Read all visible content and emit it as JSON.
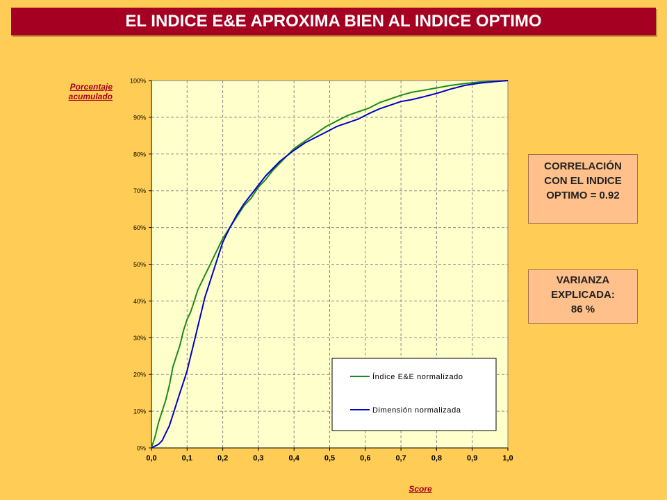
{
  "title": "EL INDICE E&E APROXIMA BIEN AL INDICE OPTIMO",
  "colors": {
    "background": "#FFCC55",
    "title_bar": "#A50021",
    "plot_area": "#FFFFCC",
    "series_green": "#1A8A1A",
    "series_blue": "#0000CC",
    "info_box": "#FFC08C"
  },
  "info_boxes": {
    "correlation": [
      "CORRELACIÓN",
      "CON EL INDICE",
      "OPTIMO = 0.92"
    ],
    "variance": [
      "VARIANZA",
      "EXPLICADA:",
      "86 %"
    ]
  },
  "chart_data": {
    "type": "line",
    "xlabel": "Score",
    "ylabel_lines": [
      "Porcentaje",
      "acumulado"
    ],
    "xlim": [
      0,
      1
    ],
    "ylim": [
      0,
      100
    ],
    "x_ticks": [
      "0,0",
      "0,1",
      "0,2",
      "0,3",
      "0,4",
      "0,5",
      "0,6",
      "0,7",
      "0,8",
      "0,9",
      "1,0"
    ],
    "y_ticks": [
      "0%",
      "10%",
      "20%",
      "30%",
      "40%",
      "50%",
      "60%",
      "70%",
      "80%",
      "90%",
      "100%"
    ],
    "grid": true,
    "legend_position": "bottom-right",
    "series": [
      {
        "name": "Índice E&E normalizado",
        "color": "#1A8A1A",
        "x": [
          0,
          0.01,
          0.02,
          0.03,
          0.04,
          0.05,
          0.06,
          0.07,
          0.08,
          0.09,
          0.1,
          0.11,
          0.12,
          0.13,
          0.14,
          0.15,
          0.16,
          0.17,
          0.18,
          0.19,
          0.2,
          0.22,
          0.24,
          0.26,
          0.28,
          0.3,
          0.32,
          0.34,
          0.36,
          0.38,
          0.4,
          0.43,
          0.46,
          0.49,
          0.52,
          0.55,
          0.58,
          0.61,
          0.64,
          0.67,
          0.7,
          0.73,
          0.76,
          0.8,
          0.84,
          0.88,
          0.92,
          0.96,
          1.0
        ],
        "y": [
          0,
          3,
          7,
          10,
          13,
          17,
          22,
          25,
          28,
          32,
          35,
          37,
          40,
          43,
          45,
          47,
          49,
          51,
          53,
          55,
          57,
          60,
          63,
          66,
          68,
          71,
          73,
          75.5,
          77.5,
          79.5,
          81.5,
          83.5,
          85.5,
          87.5,
          89,
          90.5,
          91.5,
          92.5,
          94,
          95,
          96,
          96.8,
          97.3,
          98,
          98.7,
          99.2,
          99.6,
          99.8,
          100
        ]
      },
      {
        "name": "Dimensión normalizada",
        "color": "#0000CC",
        "x": [
          0,
          0.02,
          0.03,
          0.04,
          0.05,
          0.06,
          0.07,
          0.08,
          0.09,
          0.1,
          0.11,
          0.12,
          0.13,
          0.14,
          0.15,
          0.16,
          0.17,
          0.18,
          0.19,
          0.2,
          0.22,
          0.24,
          0.26,
          0.28,
          0.3,
          0.32,
          0.34,
          0.36,
          0.38,
          0.4,
          0.43,
          0.46,
          0.49,
          0.52,
          0.55,
          0.58,
          0.61,
          0.64,
          0.67,
          0.7,
          0.73,
          0.76,
          0.8,
          0.84,
          0.88,
          0.92,
          0.96,
          1.0
        ],
        "y": [
          0,
          1,
          2,
          4,
          6,
          9,
          12,
          15,
          18,
          21,
          25,
          29,
          33,
          37,
          41,
          44,
          47,
          50,
          53,
          56,
          60,
          63.5,
          66.5,
          69,
          71.5,
          74,
          76,
          78,
          79.5,
          81,
          83,
          84.5,
          86,
          87.5,
          88.5,
          89.5,
          91,
          92.3,
          93.3,
          94.3,
          94.8,
          95.5,
          96.5,
          97.7,
          98.7,
          99.3,
          99.7,
          100
        ]
      }
    ]
  }
}
